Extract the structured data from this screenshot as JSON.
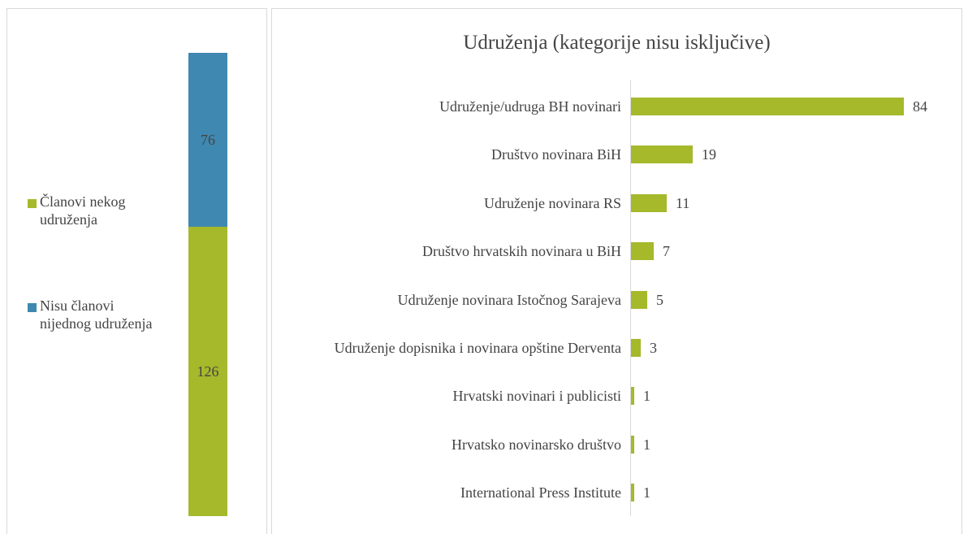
{
  "chart_data": [
    {
      "type": "stacked-bar",
      "series": [
        {
          "name": "Članovi nekog udruženja",
          "color": "#a5b92b",
          "values": [
            126
          ]
        },
        {
          "name": "Nisu članovi nijednog udruženja",
          "color": "#3f88b1",
          "values": [
            76
          ]
        }
      ]
    },
    {
      "type": "hbar",
      "title": "Udruženja (kategorije nisu isključive)",
      "color": "#a5b92b",
      "categories": [
        "Udruženje/udruga BH novinari",
        "Društvo novinara BiH",
        "Udruženje novinara RS",
        "Društvo hrvatskih novinara u BiH",
        "Udruženje novinara Istočnog Sarajeva",
        "Udruženje dopisnika i novinara opštine Derventa",
        "Hrvatski novinari i publicisti",
        "Hrvatsko novinarsko društvo",
        "International Press Institute"
      ],
      "values": [
        84,
        19,
        11,
        7,
        5,
        3,
        1,
        1,
        1
      ]
    }
  ]
}
